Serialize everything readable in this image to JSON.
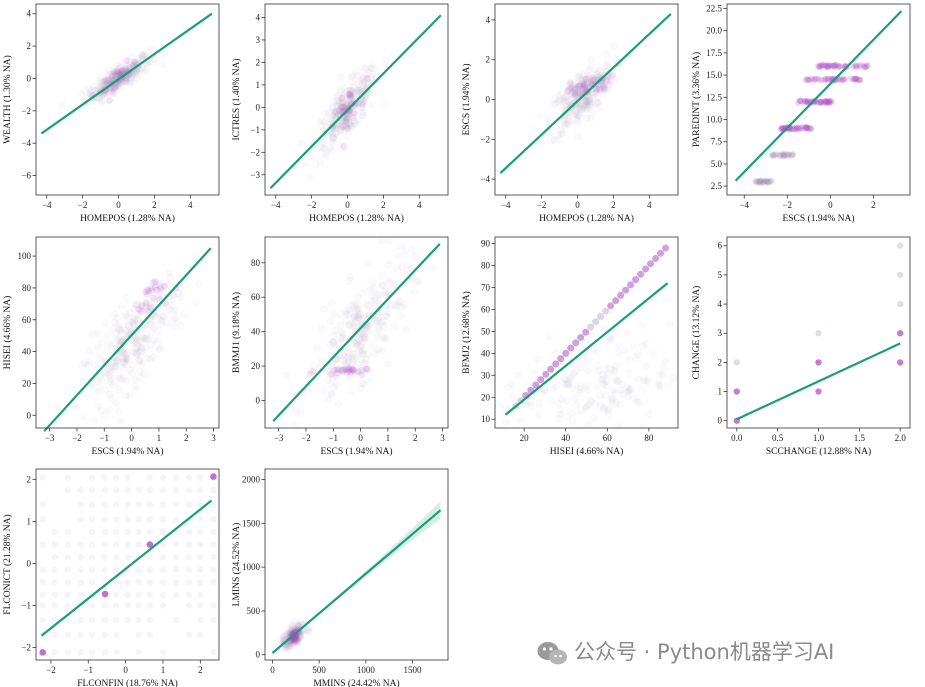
{
  "chart_data": [
    {
      "type": "scatter",
      "xlabel": "HOMEPOS (1.28% NA)",
      "ylabel": "WEALTH (1.30% NA)",
      "xlim": [
        -4.6,
        5.6
      ],
      "ylim": [
        -7.2,
        4.6
      ],
      "xticks": [
        -4,
        -2,
        0,
        2,
        4
      ],
      "yticks": [
        -6,
        -4,
        -2,
        0,
        2,
        4
      ],
      "xtick_labels": [
        "−4",
        "−2",
        "0",
        "2",
        "4"
      ],
      "ytick_labels": [
        "−6",
        "−4",
        "−2",
        "0",
        "2",
        "4"
      ],
      "fit": [
        [
          -4.3,
          -3.4
        ],
        [
          5.2,
          4.0
        ]
      ],
      "cloud": {
        "cx": 0.0,
        "cy": 0.0,
        "sx": 0.9,
        "sy": 0.7,
        "rho": 0.85,
        "n": 240
      },
      "highlight": {
        "cx": 0.0,
        "cy": 0.05,
        "sx": 0.5,
        "sy": 0.5,
        "rho": 0.8,
        "n": 30
      }
    },
    {
      "type": "scatter",
      "xlabel": "HOMEPOS (1.28% NA)",
      "ylabel": "ICTRES (1.40% NA)",
      "xlim": [
        -4.6,
        5.6
      ],
      "ylim": [
        -3.9,
        4.6
      ],
      "xticks": [
        -4,
        -2,
        0,
        2,
        4
      ],
      "yticks": [
        -3,
        -2,
        -1,
        0,
        1,
        2,
        3,
        4
      ],
      "xtick_labels": [
        "−4",
        "−2",
        "0",
        "2",
        "4"
      ],
      "ytick_labels": [
        "−3",
        "−2",
        "−1",
        "0",
        "1",
        "2",
        "3",
        "4"
      ],
      "fit": [
        [
          -4.3,
          -3.6
        ],
        [
          5.2,
          4.1
        ]
      ],
      "cloud": {
        "cx": 0.0,
        "cy": -0.1,
        "sx": 0.9,
        "sy": 0.9,
        "rho": 0.8,
        "n": 240
      },
      "highlight": {
        "cx": 0.0,
        "cy": -0.1,
        "sx": 0.35,
        "sy": 0.5,
        "rho": 0.7,
        "n": 30
      }
    },
    {
      "type": "scatter",
      "xlabel": "HOMEPOS (1.28% NA)",
      "ylabel": "ESCS (1.94% NA)",
      "xlim": [
        -4.6,
        5.6
      ],
      "ylim": [
        -4.8,
        4.8
      ],
      "xticks": [
        -4,
        -2,
        0,
        2,
        4
      ],
      "yticks": [
        -4,
        -2,
        0,
        2,
        4
      ],
      "xtick_labels": [
        "−4",
        "−2",
        "0",
        "2",
        "4"
      ],
      "ytick_labels": [
        "−4",
        "−2",
        "0",
        "2",
        "4"
      ],
      "fit": [
        [
          -4.3,
          -3.7
        ],
        [
          5.2,
          4.3
        ]
      ],
      "cloud": {
        "cx": 0.2,
        "cy": 0.1,
        "sx": 0.9,
        "sy": 0.9,
        "rho": 0.7,
        "n": 240
      },
      "highlight": {
        "cx": 0.6,
        "cy": 0.7,
        "sx": 0.6,
        "sy": 0.25,
        "rho": 0.6,
        "n": 36
      }
    },
    {
      "type": "scatter",
      "xlabel": "ESCS (1.94% NA)",
      "ylabel": "PAREDINT (3.36% NA)",
      "xlim": [
        -4.8,
        3.7
      ],
      "ylim": [
        1.5,
        23.0
      ],
      "xticks": [
        -4,
        -2,
        0,
        2
      ],
      "yticks": [
        2.5,
        5.0,
        7.5,
        10.0,
        12.5,
        15.0,
        17.5,
        20.0,
        22.5
      ],
      "xtick_labels": [
        "−4",
        "−2",
        "0",
        "2"
      ],
      "ytick_labels": [
        "2.5",
        "5.0",
        "7.5",
        "10.0",
        "12.5",
        "15.0",
        "17.5",
        "20.0",
        "22.5"
      ],
      "fit": [
        [
          -4.4,
          3.1
        ],
        [
          3.3,
          22.2
        ]
      ],
      "bands": [
        {
          "y": 3,
          "x0": -3.5,
          "x1": -2.7,
          "hi": false
        },
        {
          "y": 6,
          "x0": -2.8,
          "x1": -1.7,
          "hi": false
        },
        {
          "y": 9,
          "x0": -2.3,
          "x1": -0.9,
          "hi": true
        },
        {
          "y": 12,
          "x0": -1.6,
          "x1": 0.1,
          "hi": true
        },
        {
          "y": 14.5,
          "x0": -1.2,
          "x1": 1.4,
          "hi": true
        },
        {
          "y": 16,
          "x0": -0.6,
          "x1": 1.8,
          "hi": true
        }
      ]
    },
    {
      "type": "scatter",
      "xlabel": "ESCS (1.94% NA)",
      "ylabel": "HISEI (4.66% NA)",
      "xlim": [
        -3.5,
        3.2
      ],
      "ylim": [
        -8,
        112
      ],
      "xticks": [
        -3,
        -2,
        -1,
        0,
        1,
        2,
        3
      ],
      "yticks": [
        0,
        20,
        40,
        60,
        80,
        100
      ],
      "xtick_labels": [
        "−3",
        "−2",
        "−1",
        "0",
        "1",
        "2",
        "3"
      ],
      "ytick_labels": [
        "0",
        "20",
        "40",
        "60",
        "80",
        "100"
      ],
      "fit": [
        [
          -3.2,
          -10
        ],
        [
          2.9,
          105
        ]
      ],
      "cloud": {
        "cx": 0.0,
        "cy": 45,
        "sx": 0.9,
        "sy": 20,
        "rho": 0.75,
        "n": 260
      },
      "highlight": {
        "cx": 0.8,
        "cy": 75,
        "sx": 0.3,
        "sy": 7,
        "rho": 0.5,
        "n": 22
      }
    },
    {
      "type": "scatter",
      "xlabel": "ESCS (1.94% NA)",
      "ylabel": "BMMJ1 (9.18% NA)",
      "xlim": [
        -3.5,
        3.2
      ],
      "ylim": [
        -16,
        95
      ],
      "xticks": [
        -3,
        -2,
        -1,
        0,
        1,
        2,
        3
      ],
      "yticks": [
        0,
        20,
        40,
        60,
        80
      ],
      "xtick_labels": [
        "−3",
        "−2",
        "−1",
        "0",
        "1",
        "2",
        "3"
      ],
      "ytick_labels": [
        "0",
        "20",
        "40",
        "60",
        "80"
      ],
      "fit": [
        [
          -3.2,
          -12
        ],
        [
          2.9,
          91
        ]
      ],
      "cloud": {
        "cx": 0.0,
        "cy": 40,
        "sx": 0.9,
        "sy": 20,
        "rho": 0.72,
        "n": 260
      },
      "highlight": {
        "cx": -0.7,
        "cy": 17,
        "sx": 0.45,
        "sy": 1,
        "rho": 0.0,
        "n": 24
      }
    },
    {
      "type": "scatter",
      "xlabel": "HISEI (4.66% NA)",
      "ylabel": "BFMJ2 (12.68% NA)",
      "xlim": [
        6,
        94
      ],
      "ylim": [
        6,
        93
      ],
      "xticks": [
        20,
        40,
        60,
        80
      ],
      "yticks": [
        10,
        20,
        30,
        40,
        50,
        60,
        70,
        80,
        90
      ],
      "xtick_labels": [
        "20",
        "40",
        "60",
        "80"
      ],
      "ytick_labels": [
        "10",
        "20",
        "30",
        "40",
        "50",
        "60",
        "70",
        "80",
        "90"
      ],
      "fit": [
        [
          11,
          12
        ],
        [
          89,
          72
        ]
      ],
      "diag": {
        "x0": 16,
        "x1": 89,
        "step": 2.4
      },
      "cloud": {
        "cx": 50,
        "cy": 25,
        "sx": 20,
        "sy": 12,
        "rho": 0.2,
        "n": 180
      }
    },
    {
      "type": "scatter",
      "xlabel": "SCCHANGE (12.88% NA)",
      "ylabel": "CHANGE (13.12% NA)",
      "xlim": [
        -0.12,
        2.12
      ],
      "ylim": [
        -0.25,
        6.3
      ],
      "xticks": [
        0.0,
        0.5,
        1.0,
        1.5,
        2.0
      ],
      "yticks": [
        0,
        1,
        2,
        3,
        4,
        5,
        6
      ],
      "xtick_labels": [
        "0.0",
        "0.5",
        "1.0",
        "1.5",
        "2.0"
      ],
      "ytick_labels": [
        "0",
        "1",
        "2",
        "3",
        "4",
        "5",
        "6"
      ],
      "fit": [
        [
          0.0,
          0.05
        ],
        [
          2.0,
          2.65
        ]
      ],
      "grid_points": [
        [
          0,
          0,
          true
        ],
        [
          0,
          1,
          true
        ],
        [
          0,
          2,
          false
        ],
        [
          1,
          1,
          true
        ],
        [
          1,
          2,
          true
        ],
        [
          1,
          3,
          false
        ],
        [
          2,
          2,
          true
        ],
        [
          2,
          3,
          true
        ],
        [
          2,
          4,
          false
        ],
        [
          2,
          5,
          false
        ],
        [
          2,
          6,
          false
        ]
      ]
    },
    {
      "type": "scatter",
      "xlabel": "FLCONFIN (18.76% NA)",
      "ylabel": "FLCONICT (21.28% NA)",
      "xlim": [
        -2.4,
        2.5
      ],
      "ylim": [
        -2.3,
        2.25
      ],
      "xticks": [
        -2,
        -1,
        0,
        1,
        2
      ],
      "yticks": [
        -2,
        -1,
        0,
        1,
        2
      ],
      "xtick_labels": [
        "−2",
        "−1",
        "0",
        "1",
        "2"
      ],
      "ytick_labels": [
        "−2",
        "−1",
        "0",
        "1",
        "2"
      ],
      "fit": [
        [
          -2.25,
          -1.72
        ],
        [
          2.3,
          1.5
        ]
      ],
      "grid_x": [
        -2.22,
        -1.9,
        -1.55,
        -1.2,
        -0.9,
        -0.55,
        -0.25,
        0.05,
        0.35,
        0.65,
        1.0,
        1.35,
        1.7,
        2.0,
        2.35
      ],
      "grid_y": [
        -2.12,
        -1.7,
        -1.35,
        -1.0,
        -0.75,
        -0.45,
        -0.15,
        0.15,
        0.45,
        0.75,
        1.05,
        1.4,
        1.75,
        2.05
      ],
      "hi_points": [
        [
          -2.22,
          -2.12
        ],
        [
          -0.55,
          -0.73
        ],
        [
          0.65,
          0.45
        ],
        [
          2.35,
          2.07
        ]
      ]
    },
    {
      "type": "scatter",
      "xlabel": "MMINS (24.42% NA)",
      "ylabel": "LMINS (24.52% NA)",
      "xlim": [
        -80,
        1880
      ],
      "ylim": [
        -60,
        2120
      ],
      "xticks": [
        0,
        500,
        1000,
        1500
      ],
      "yticks": [
        0,
        500,
        1000,
        1500,
        2000
      ],
      "xtick_labels": [
        "0",
        "500",
        "1000",
        "1500"
      ],
      "ytick_labels": [
        "0",
        "500",
        "1000",
        "1500",
        "2000"
      ],
      "fit": [
        [
          0,
          20
        ],
        [
          1800,
          1650
        ]
      ],
      "ci": true,
      "cloud": {
        "cx": 230,
        "cy": 220,
        "sx": 60,
        "sy": 70,
        "rho": 0.6,
        "n": 160
      },
      "highlight": {
        "cx": 230,
        "cy": 210,
        "sx": 35,
        "sy": 40,
        "rho": 0.5,
        "n": 40
      }
    }
  ],
  "watermark": {
    "text": "公众号 · Python机器学习AI"
  },
  "colors": {
    "fit": "#1a9e77",
    "cloud": "#9a8ab0",
    "highlight": "#b050c8"
  }
}
